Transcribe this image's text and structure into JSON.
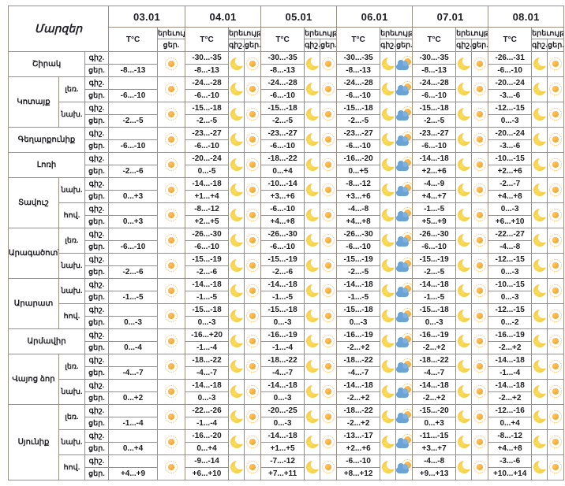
{
  "table": {
    "corner_label": "Մարզեր",
    "temp_header": "T°C",
    "phenomenon_header": "երեւույթ",
    "night_label": "գիշ.",
    "day_label": "ցեր.",
    "dates": [
      "03.01",
      "04.01",
      "05.01",
      "06.01",
      "07.01",
      "08.01"
    ],
    "night_icons": [
      null,
      "moon",
      "moon",
      "moon",
      "moon",
      "moon"
    ],
    "day_icons": [
      "sun",
      "sun",
      "sun",
      "sun-cloud",
      "sun",
      "sun"
    ],
    "icons": {
      "sun": "sun-icon",
      "moon": "moon-icon",
      "sun-cloud": "sun-cloud-icon"
    },
    "colors": {
      "border": "#9c8e80",
      "text": "#1d1d24",
      "sun": "#f0991f",
      "sun_halo": "#f0b95a",
      "moon": "#f2c233",
      "cloud": "#6ba3d6"
    },
    "regions": [
      {
        "name": "Շիրակ",
        "zones": [
          {
            "label": "",
            "night": [
              "",
              "-30...-35",
              "-30...-35",
              "-30...-35",
              "-30...-35",
              "-26...-31"
            ],
            "day": [
              "-8...-13",
              "-8...-13",
              "-8...-13",
              "-8...-13",
              "-8...-13",
              "-6...-10"
            ]
          }
        ]
      },
      {
        "name": "Կոտայք",
        "zones": [
          {
            "label": "լեռ.",
            "night": [
              "",
              "-24...-28",
              "-24...-28",
              "-24...-28",
              "-24...-28",
              "-20...-24"
            ],
            "day": [
              "-6...-10",
              "-6...-10",
              "-6...-10",
              "-6...-10",
              "-6...-10",
              "-3...-6"
            ]
          },
          {
            "label": "նախ.",
            "night": [
              "",
              "-15...-18",
              "-15...-18",
              "-15...-18",
              "-15...-18",
              "-12...-15"
            ],
            "day": [
              "-2...-5",
              "-2...-5",
              "-2...-5",
              "-2...-5",
              "-2...-5",
              "0...-3"
            ]
          }
        ]
      },
      {
        "name": "Գեղարքունիք",
        "zones": [
          {
            "label": "",
            "night": [
              "",
              "-23...-27",
              "-23...-27",
              "-23...-27",
              "-23...-27",
              "-20...-24"
            ],
            "day": [
              "-6...-10",
              "-6...-10",
              "-6...-10",
              "-6...-10",
              "-6...-10",
              "-3...-6"
            ]
          }
        ]
      },
      {
        "name": "Լոռի",
        "zones": [
          {
            "label": "",
            "night": [
              "",
              "-20...-24",
              "-18...-22",
              "-16...-20",
              "-14...-18",
              "-10...-15"
            ],
            "day": [
              "-2...-6",
              "0...-5",
              "0...+4",
              "0...+5",
              "+2...+6",
              "+2...+6"
            ]
          }
        ]
      },
      {
        "name": "Տավուշ",
        "zones": [
          {
            "label": "նախ.",
            "night": [
              "",
              "-14...-18",
              "-10...-14",
              "-8...-12",
              "-4...-9",
              "-2...-7"
            ],
            "day": [
              "0...+3",
              "+1...+4",
              "+3...+6",
              "+3...+6",
              "+4...+7",
              "+4...+8"
            ]
          },
          {
            "label": "հով.",
            "night": [
              "",
              "-8...-12",
              "-6...-10",
              "-4...-8",
              "-1...-5",
              "0...-3"
            ],
            "day": [
              "0...+3",
              "+2...+5",
              "+4...+8",
              "+4...+8",
              "+5...+9",
              "+6...+10"
            ]
          }
        ]
      },
      {
        "name": "Արագածոտն",
        "zones": [
          {
            "label": "լեռ.",
            "night": [
              "",
              "-26...-30",
              "-26...-30",
              "-26...-30",
              "-26...-30",
              "-22...-27"
            ],
            "day": [
              "-6...-10",
              "-6...-10",
              "-6...-10",
              "-6...-10",
              "-6...-10",
              "-4...-8"
            ]
          },
          {
            "label": "նախ.",
            "night": [
              "",
              "-15...-19",
              "-15...-19",
              "-15...-19",
              "-15...-19",
              "-12...-15"
            ],
            "day": [
              "-2...-6",
              "-2...-6",
              "-2...-6",
              "-2...-5",
              "-2...-5",
              "0...-3"
            ]
          }
        ]
      },
      {
        "name": "Արարատ",
        "zones": [
          {
            "label": "նախ.",
            "night": [
              "",
              "-14...-18",
              "-14...-18",
              "-14...-18",
              "-14...-18",
              "-10...-15"
            ],
            "day": [
              "-1...-5",
              "-1...-5",
              "-1...-5",
              "-1...-5",
              "-1...-5",
              "0...-3"
            ]
          },
          {
            "label": "հով.",
            "night": [
              "",
              "-15...-18",
              "-15...-18",
              "-15...-18",
              "-15...-18",
              "-12...-15"
            ],
            "day": [
              "0...-3",
              "0...-3",
              "0...-3",
              "0...-3",
              "0...-3",
              "0...-2"
            ]
          }
        ]
      },
      {
        "name": "Արմավիր",
        "zones": [
          {
            "label": "",
            "night": [
              "",
              "-16...+20",
              "-16...-19",
              "-16...-19",
              "-16...-19",
              "-16...-19"
            ],
            "day": [
              "0...-4",
              "-1...-4",
              "-1...-4",
              "-2...+2",
              "-2...+2",
              "-2...+2"
            ]
          }
        ]
      },
      {
        "name": "Վայոց ձոր",
        "zones": [
          {
            "label": "լեռ.",
            "night": [
              "",
              "-18...-22",
              "-18...-22",
              "-18...-22",
              "-18...-22",
              "-14...-18"
            ],
            "day": [
              "-4...-7",
              "-4...-7",
              "-4...-7",
              "-4...-7",
              "-4...-7",
              "-1...-4"
            ]
          },
          {
            "label": "նախ.",
            "night": [
              "",
              "-14...-18",
              "-14...-18",
              "-14...-18",
              "-14...-18",
              "-14...-18"
            ],
            "day": [
              "0...+2",
              "0...-3",
              "0...-3",
              "-2...+2",
              "-2...+2",
              "-2...+2"
            ]
          }
        ]
      },
      {
        "name": "Սյունիք",
        "zones": [
          {
            "label": "լեռ.",
            "night": [
              "",
              "-22...-26",
              "-20...-25",
              "-18...-22",
              "-15...-20",
              "-12...-16"
            ],
            "day": [
              "-1...-4",
              "-1...-4",
              "0...-3",
              "-2...+2",
              "0...+3",
              "0...+4"
            ]
          },
          {
            "label": "նախ.",
            "night": [
              "",
              "-16...-20",
              "-14...-18",
              "-13...-17",
              "-11...-15",
              "-8...-12"
            ],
            "day": [
              "0...+4",
              "0...+4",
              "+1...+5",
              "+2...+6",
              "+3...+7",
              "+4...+8"
            ]
          },
          {
            "label": "հով.",
            "night": [
              "",
              "-9...-14",
              "-7...-12",
              "-6...-10",
              "-4...-8",
              "-3...-6"
            ],
            "day": [
              "+4...+9",
              "+6...+10",
              "+7...+11",
              "+8...+12",
              "+9...+13",
              "+10...+14"
            ]
          }
        ]
      }
    ]
  }
}
